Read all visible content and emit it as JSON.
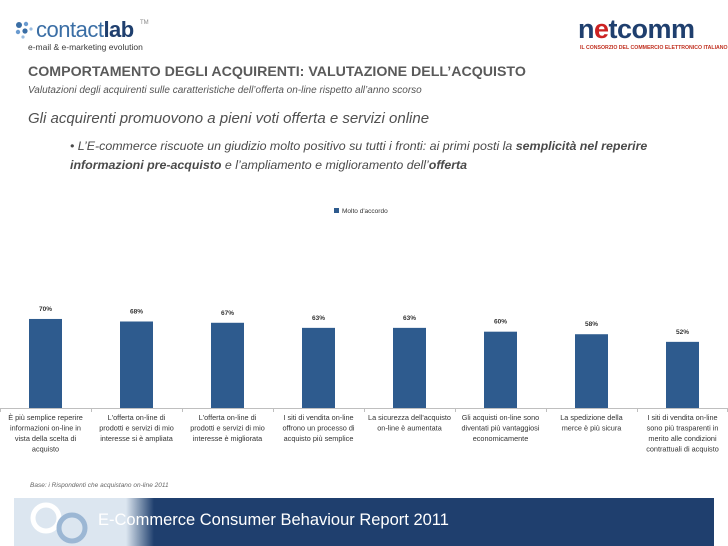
{
  "logos": {
    "left": {
      "word_light": "contact",
      "word_bold": "lab",
      "tm": "TM",
      "tagline": "e-mail & e-marketing evolution"
    },
    "right": {
      "word_pre": "n",
      "word_accent": "e",
      "word_post": "tcomm",
      "tagline": "IL CONSORZIO DEL COMMERCIO ELETTRONICO ITALIANO"
    }
  },
  "header": {
    "title": "COMPORTAMENTO DEGLI ACQUIRENTI: VALUTAZIONE DELL’ACQUISTO",
    "subtitle": "Valutazioni degli acquirenti sulle caratteristiche dell’offerta on-line rispetto all’anno scorso"
  },
  "headline": "Gli acquirenti promuovono a pieni voti offerta e servizi online",
  "bullet": {
    "prefix": "• L’E-commerce  riscuote un giudizio molto positivo su tutti i fronti: ai primi posti la ",
    "bold1": "semplicità nel reperire informazioni pre-acquisto",
    "middle": " e l’ampliamento e miglioramento dell’",
    "bold2": "offerta"
  },
  "chart_data": {
    "type": "bar",
    "series": [
      {
        "name": "Molto d'accordo",
        "values": [
          70,
          68,
          67,
          63,
          63,
          60,
          58,
          52
        ]
      }
    ],
    "categories": [
      [
        "È più semplice reperire",
        "informazioni on-line in",
        "vista della scelta di",
        "acquisto"
      ],
      [
        "L'offerta on-line di",
        "prodotti e servizi di mio",
        "interesse si è ampliata"
      ],
      [
        "L'offerta on-line di",
        "prodotti e servizi di mio",
        "interesse è migliorata"
      ],
      [
        "I siti di vendita on-line",
        "offrono un processo di",
        "acquisto più semplice"
      ],
      [
        "La sicurezza dell'acquisto",
        "on-line è aumentata"
      ],
      [
        "Gli acquisti on-line sono",
        "diventati più vantaggiosi",
        "economicamente"
      ],
      [
        "La spedizione della",
        "merce è più sicura"
      ],
      [
        "I siti di vendita on-line",
        "sono più trasparenti in",
        "merito alle condizioni",
        "contrattuali di acquisto"
      ]
    ],
    "data_labels": [
      "70%",
      "68%",
      "67%",
      "63%",
      "63%",
      "60%",
      "58%",
      "52%"
    ],
    "ylim": [
      0,
      100
    ],
    "unit": "%",
    "legend_position": "top-center",
    "grid": false,
    "colors": {
      "bar": "#2e5b8e"
    }
  },
  "footnote": "Base: i Rispondenti che acquistano on-line 2011",
  "banner": {
    "text": "E-Commerce Consumer Behaviour Report 2011",
    "color": "#1f3f6e"
  }
}
